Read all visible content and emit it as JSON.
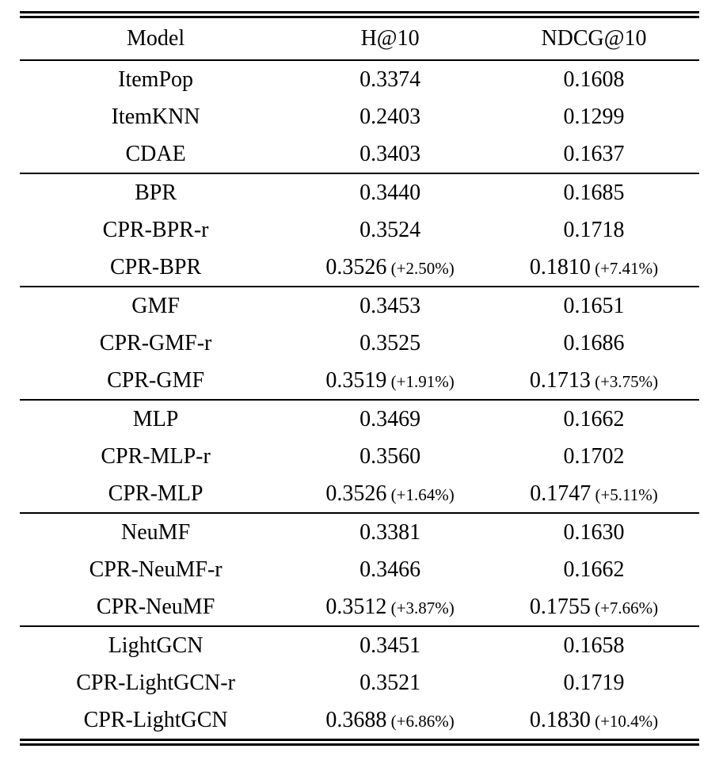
{
  "table": {
    "columns": [
      "Model",
      "H@10",
      "NDCG@10"
    ],
    "groups": [
      {
        "rows": [
          {
            "model": "ItemPop",
            "h10": "0.3374",
            "ndcg10": "0.1608"
          },
          {
            "model": "ItemKNN",
            "h10": "0.2403",
            "ndcg10": "0.1299"
          },
          {
            "model": "CDAE",
            "h10": "0.3403",
            "ndcg10": "0.1637"
          }
        ]
      },
      {
        "rows": [
          {
            "model": "BPR",
            "h10": "0.3440",
            "ndcg10": "0.1685"
          },
          {
            "model": "CPR-BPR-r",
            "h10": "0.3524",
            "ndcg10": "0.1718"
          },
          {
            "model": "CPR-BPR",
            "h10": "0.3526",
            "h10_note": "(+2.50%)",
            "ndcg10": "0.1810",
            "ndcg10_note": "(+7.41%)"
          }
        ]
      },
      {
        "rows": [
          {
            "model": "GMF",
            "h10": "0.3453",
            "ndcg10": "0.1651"
          },
          {
            "model": "CPR-GMF-r",
            "h10": "0.3525",
            "ndcg10": "0.1686"
          },
          {
            "model": "CPR-GMF",
            "h10": "0.3519",
            "h10_note": "(+1.91%)",
            "ndcg10": "0.1713",
            "ndcg10_note": "(+3.75%)"
          }
        ]
      },
      {
        "rows": [
          {
            "model": "MLP",
            "h10": "0.3469",
            "ndcg10": "0.1662"
          },
          {
            "model": "CPR-MLP-r",
            "h10": "0.3560",
            "ndcg10": "0.1702"
          },
          {
            "model": "CPR-MLP",
            "h10": "0.3526",
            "h10_note": "(+1.64%)",
            "ndcg10": "0.1747",
            "ndcg10_note": "(+5.11%)"
          }
        ]
      },
      {
        "rows": [
          {
            "model": "NeuMF",
            "h10": "0.3381",
            "ndcg10": "0.1630"
          },
          {
            "model": "CPR-NeuMF-r",
            "h10": "0.3466",
            "ndcg10": "0.1662"
          },
          {
            "model": "CPR-NeuMF",
            "h10": "0.3512",
            "h10_note": "(+3.87%)",
            "ndcg10": "0.1755",
            "ndcg10_note": "(+7.66%)"
          }
        ]
      },
      {
        "rows": [
          {
            "model": "LightGCN",
            "h10": "0.3451",
            "ndcg10": "0.1658"
          },
          {
            "model": "CPR-LightGCN-r",
            "h10": "0.3521",
            "ndcg10": "0.1719"
          },
          {
            "model": "CPR-LightGCN",
            "h10": "0.3688",
            "h10_note": "(+6.86%)",
            "ndcg10": "0.1830",
            "ndcg10_note": "(+10.4%)"
          }
        ]
      }
    ]
  }
}
